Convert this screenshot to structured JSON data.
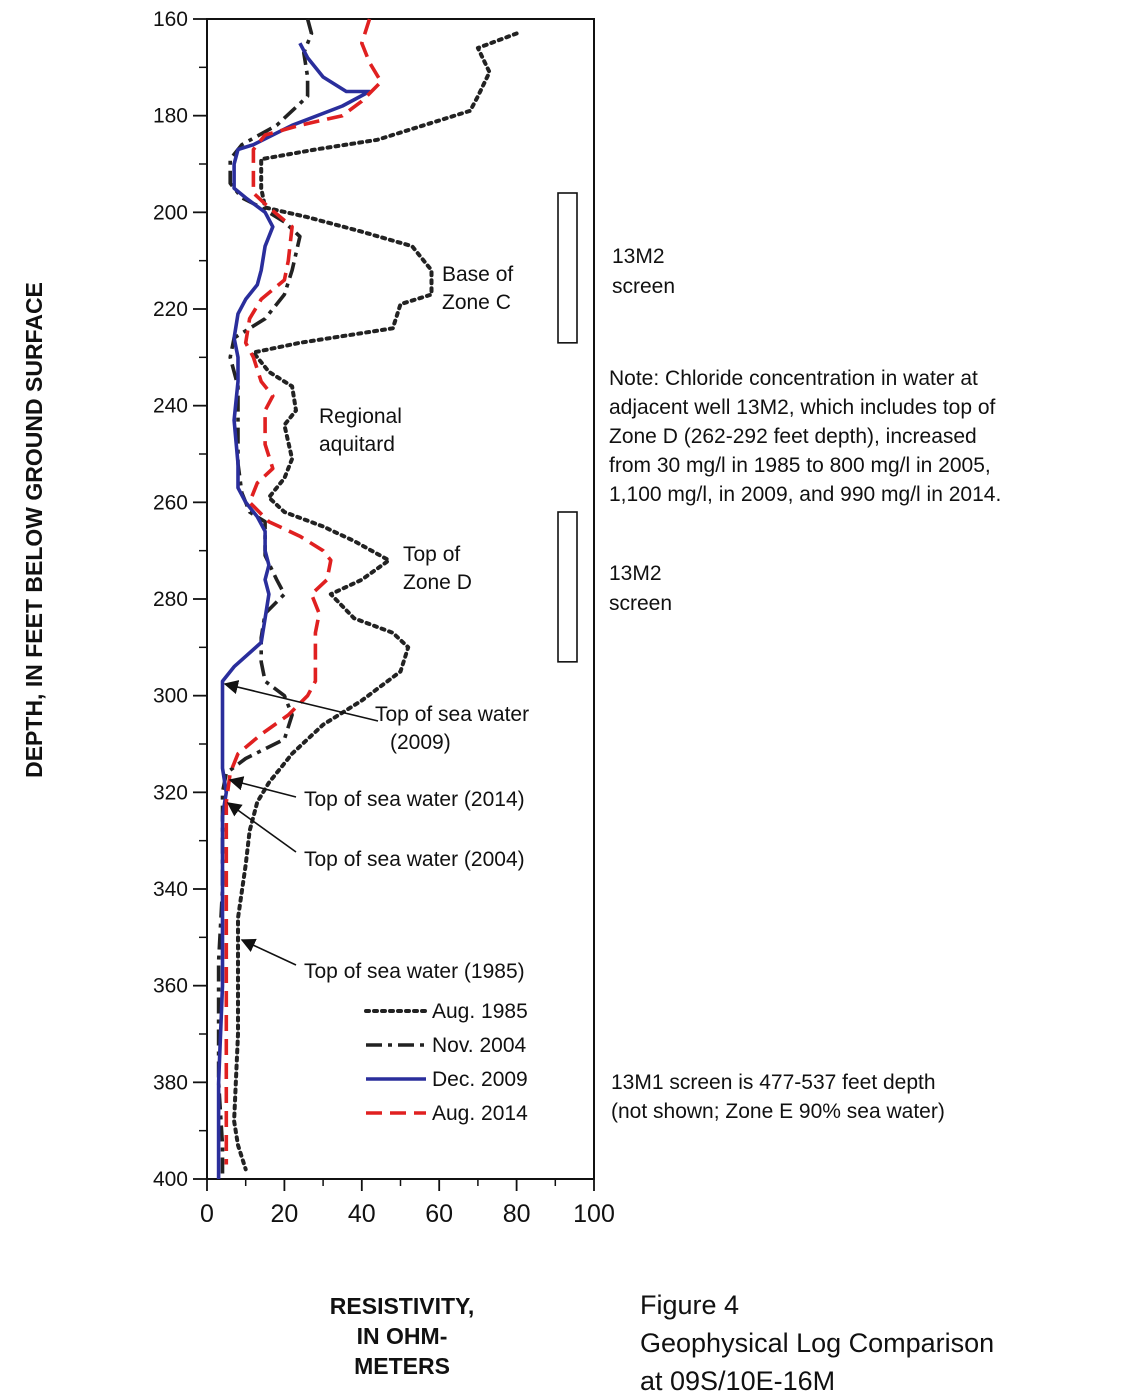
{
  "chart_data": {
    "type": "line",
    "ylabel": "DEPTH, IN FEET BELOW  GROUND SURFACE",
    "xlabel_lines": [
      "RESISTIVITY,",
      "IN OHM-",
      "METERS"
    ],
    "x_ticks": [
      "0",
      "20",
      "40",
      "60",
      "80",
      "100"
    ],
    "y_ticks": [
      "160",
      "180",
      "200",
      "220",
      "240",
      "260",
      "280",
      "300",
      "320",
      "340",
      "360",
      "380",
      "400"
    ],
    "xlim": [
      0,
      100
    ],
    "ylim": [
      160,
      400
    ],
    "y_inverted": true,
    "grid": false,
    "legend_position": "bottom-right",
    "series": [
      {
        "name": "Aug. 1985",
        "color": "#222222",
        "dash": "dot",
        "points": [
          [
            80,
            163
          ],
          [
            70,
            166
          ],
          [
            73,
            171
          ],
          [
            70,
            176
          ],
          [
            68,
            179
          ],
          [
            44,
            185
          ],
          [
            28,
            187
          ],
          [
            14,
            189
          ],
          [
            14,
            195
          ],
          [
            15,
            199
          ],
          [
            26,
            201
          ],
          [
            40,
            204
          ],
          [
            53,
            207
          ],
          [
            58,
            212
          ],
          [
            58,
            217
          ],
          [
            50,
            219
          ],
          [
            48,
            224
          ],
          [
            24,
            227
          ],
          [
            12,
            229
          ],
          [
            16,
            233
          ],
          [
            22,
            236
          ],
          [
            23,
            241
          ],
          [
            20,
            244
          ],
          [
            22,
            251
          ],
          [
            20,
            255
          ],
          [
            16,
            259
          ],
          [
            20,
            262
          ],
          [
            30,
            265
          ],
          [
            38,
            268
          ],
          [
            47,
            272
          ],
          [
            40,
            276
          ],
          [
            32,
            279
          ],
          [
            38,
            284
          ],
          [
            48,
            287
          ],
          [
            52,
            290
          ],
          [
            50,
            295
          ],
          [
            40,
            301
          ],
          [
            30,
            306
          ],
          [
            22,
            312
          ],
          [
            16,
            318
          ],
          [
            13,
            322
          ],
          [
            11,
            328
          ],
          [
            10,
            335
          ],
          [
            8,
            346
          ],
          [
            8,
            350
          ],
          [
            8,
            370
          ],
          [
            7,
            388
          ],
          [
            8,
            393
          ],
          [
            10,
            398
          ]
        ]
      },
      {
        "name": "Nov. 2004",
        "color": "#222222",
        "dash": "dashdot",
        "points": [
          [
            26,
            160
          ],
          [
            27,
            163
          ],
          [
            25,
            167
          ],
          [
            26,
            172
          ],
          [
            26,
            176
          ],
          [
            18,
            182
          ],
          [
            9,
            186
          ],
          [
            6,
            189
          ],
          [
            6,
            194
          ],
          [
            9,
            197
          ],
          [
            14,
            199
          ],
          [
            20,
            202
          ],
          [
            24,
            205
          ],
          [
            22,
            212
          ],
          [
            20,
            217
          ],
          [
            15,
            222
          ],
          [
            7,
            226
          ],
          [
            6,
            230
          ],
          [
            8,
            236
          ],
          [
            8,
            243
          ],
          [
            8,
            252
          ],
          [
            9,
            258
          ],
          [
            11,
            262
          ],
          [
            15,
            264
          ],
          [
            15,
            267
          ],
          [
            15,
            271
          ],
          [
            18,
            276
          ],
          [
            20,
            279
          ],
          [
            15,
            283
          ],
          [
            14,
            288
          ],
          [
            14,
            293
          ],
          [
            15,
            297
          ],
          [
            20,
            300
          ],
          [
            22,
            304
          ],
          [
            20,
            309
          ],
          [
            10,
            313
          ],
          [
            5,
            316
          ],
          [
            4,
            320
          ],
          [
            4,
            324
          ],
          [
            4,
            330
          ],
          [
            4,
            340
          ],
          [
            3,
            355
          ],
          [
            3,
            370
          ],
          [
            3,
            380
          ],
          [
            4,
            393
          ],
          [
            4,
            400
          ]
        ]
      },
      {
        "name": "Dec. 2009",
        "color": "#2a2e9c",
        "dash": "solid",
        "points": [
          [
            24,
            165
          ],
          [
            26,
            168
          ],
          [
            30,
            172
          ],
          [
            36,
            175
          ],
          [
            42,
            175
          ],
          [
            35,
            178
          ],
          [
            22,
            182
          ],
          [
            12,
            186
          ],
          [
            8,
            187
          ],
          [
            7,
            190
          ],
          [
            7,
            195
          ],
          [
            10,
            197
          ],
          [
            15,
            200
          ],
          [
            17,
            203
          ],
          [
            15,
            207
          ],
          [
            14,
            212
          ],
          [
            13,
            215
          ],
          [
            10,
            218
          ],
          [
            8,
            221
          ],
          [
            7,
            226
          ],
          [
            8,
            230
          ],
          [
            8,
            235
          ],
          [
            7,
            243
          ],
          [
            8,
            252
          ],
          [
            8,
            257
          ],
          [
            10,
            260
          ],
          [
            13,
            263
          ],
          [
            15,
            266
          ],
          [
            15,
            270
          ],
          [
            16,
            273
          ],
          [
            15,
            276
          ],
          [
            16,
            279
          ],
          [
            15,
            284
          ],
          [
            14,
            289
          ],
          [
            7,
            294
          ],
          [
            4,
            297
          ],
          [
            4,
            300
          ],
          [
            4,
            305
          ],
          [
            4,
            310
          ],
          [
            4,
            315
          ],
          [
            5,
            320
          ],
          [
            4,
            325
          ],
          [
            4,
            340
          ],
          [
            4,
            360
          ],
          [
            3,
            380
          ],
          [
            3,
            400
          ]
        ]
      },
      {
        "name": "Aug. 2014",
        "color": "#e02020",
        "dash": "dash",
        "points": [
          [
            42,
            160
          ],
          [
            40,
            165
          ],
          [
            42,
            169
          ],
          [
            45,
            173
          ],
          [
            40,
            177
          ],
          [
            35,
            180
          ],
          [
            24,
            182
          ],
          [
            15,
            184
          ],
          [
            12,
            187
          ],
          [
            12,
            192
          ],
          [
            12,
            196
          ],
          [
            16,
            199
          ],
          [
            22,
            203
          ],
          [
            21,
            210
          ],
          [
            20,
            214
          ],
          [
            14,
            218
          ],
          [
            11,
            222
          ],
          [
            10,
            227
          ],
          [
            12,
            230
          ],
          [
            14,
            235
          ],
          [
            17,
            238
          ],
          [
            15,
            241
          ],
          [
            15,
            248
          ],
          [
            17,
            253
          ],
          [
            13,
            256
          ],
          [
            11,
            260
          ],
          [
            16,
            264
          ],
          [
            24,
            267
          ],
          [
            30,
            270
          ],
          [
            32,
            272
          ],
          [
            31,
            276
          ],
          [
            27,
            279
          ],
          [
            29,
            283
          ],
          [
            28,
            287
          ],
          [
            28,
            292
          ],
          [
            28,
            297
          ],
          [
            26,
            300
          ],
          [
            21,
            304
          ],
          [
            14,
            308
          ],
          [
            8,
            312
          ],
          [
            6,
            316
          ],
          [
            5,
            322
          ],
          [
            5,
            330
          ],
          [
            5,
            340
          ],
          [
            5,
            370
          ],
          [
            5,
            390
          ],
          [
            5,
            397
          ]
        ]
      }
    ],
    "screens": [
      {
        "label_lines": [
          "13M2",
          "screen"
        ],
        "top": 196,
        "bottom": 227
      },
      {
        "label_lines": [
          "13M2",
          "screen"
        ],
        "top": 262,
        "bottom": 293
      }
    ],
    "annotations": {
      "base_zone_c": [
        "Base of",
        "Zone C"
      ],
      "regional_aquitard": [
        "Regional",
        "aquitard"
      ],
      "top_zone_d": [
        "Top of",
        "Zone D"
      ],
      "sea_2009": [
        "Top of sea water",
        "(2009)"
      ],
      "sea_2014": "Top of sea water (2014)",
      "sea_2004": "Top of sea water (2004)",
      "sea_1985": "Top of sea water (1985)",
      "note": [
        "Note:  Chloride concentration in water at",
        "adjacent well 13M2, which includes top of",
        "Zone D (262-292 feet depth), increased",
        "from 30 mg/l in 1985 to 800 mg/l in 2005,",
        "1,100 mg/l, in 2009, and 990 mg/l in 2014."
      ],
      "m1_note": [
        "13M1 screen is 477-537 feet depth",
        "(not shown; Zone E 90% sea water)"
      ]
    },
    "figure_caption": [
      "Figure 4",
      "Geophysical Log Comparison",
      "at 09S/10E-16M"
    ]
  }
}
